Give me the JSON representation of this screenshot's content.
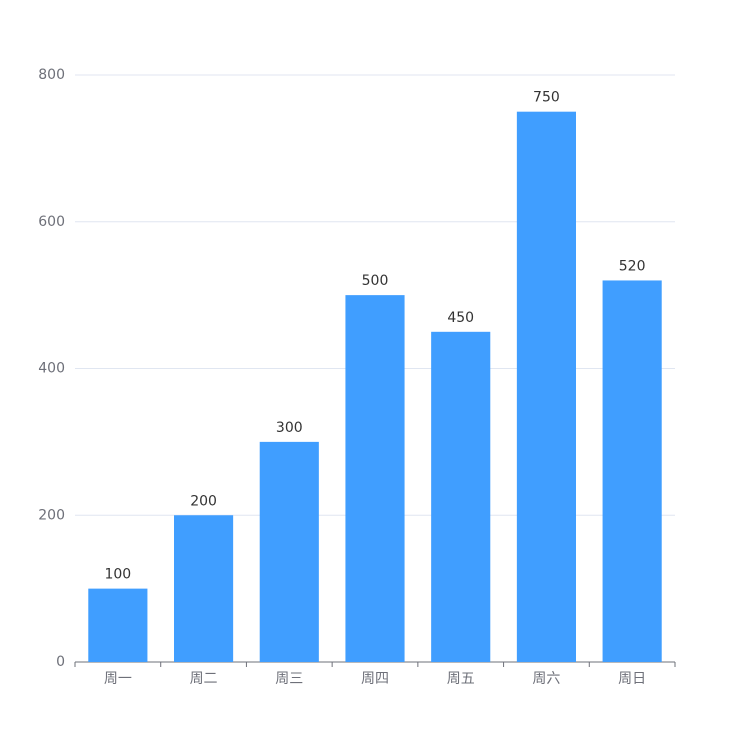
{
  "chart_data": {
    "type": "bar",
    "categories": [
      "周一",
      "周二",
      "周三",
      "周四",
      "周五",
      "周六",
      "周日"
    ],
    "values": [
      100,
      200,
      300,
      500,
      450,
      750,
      520
    ],
    "color": "#409eff",
    "ylim": [
      0,
      800
    ],
    "yticks": [
      0,
      200,
      400,
      600,
      800
    ],
    "grid": true
  }
}
